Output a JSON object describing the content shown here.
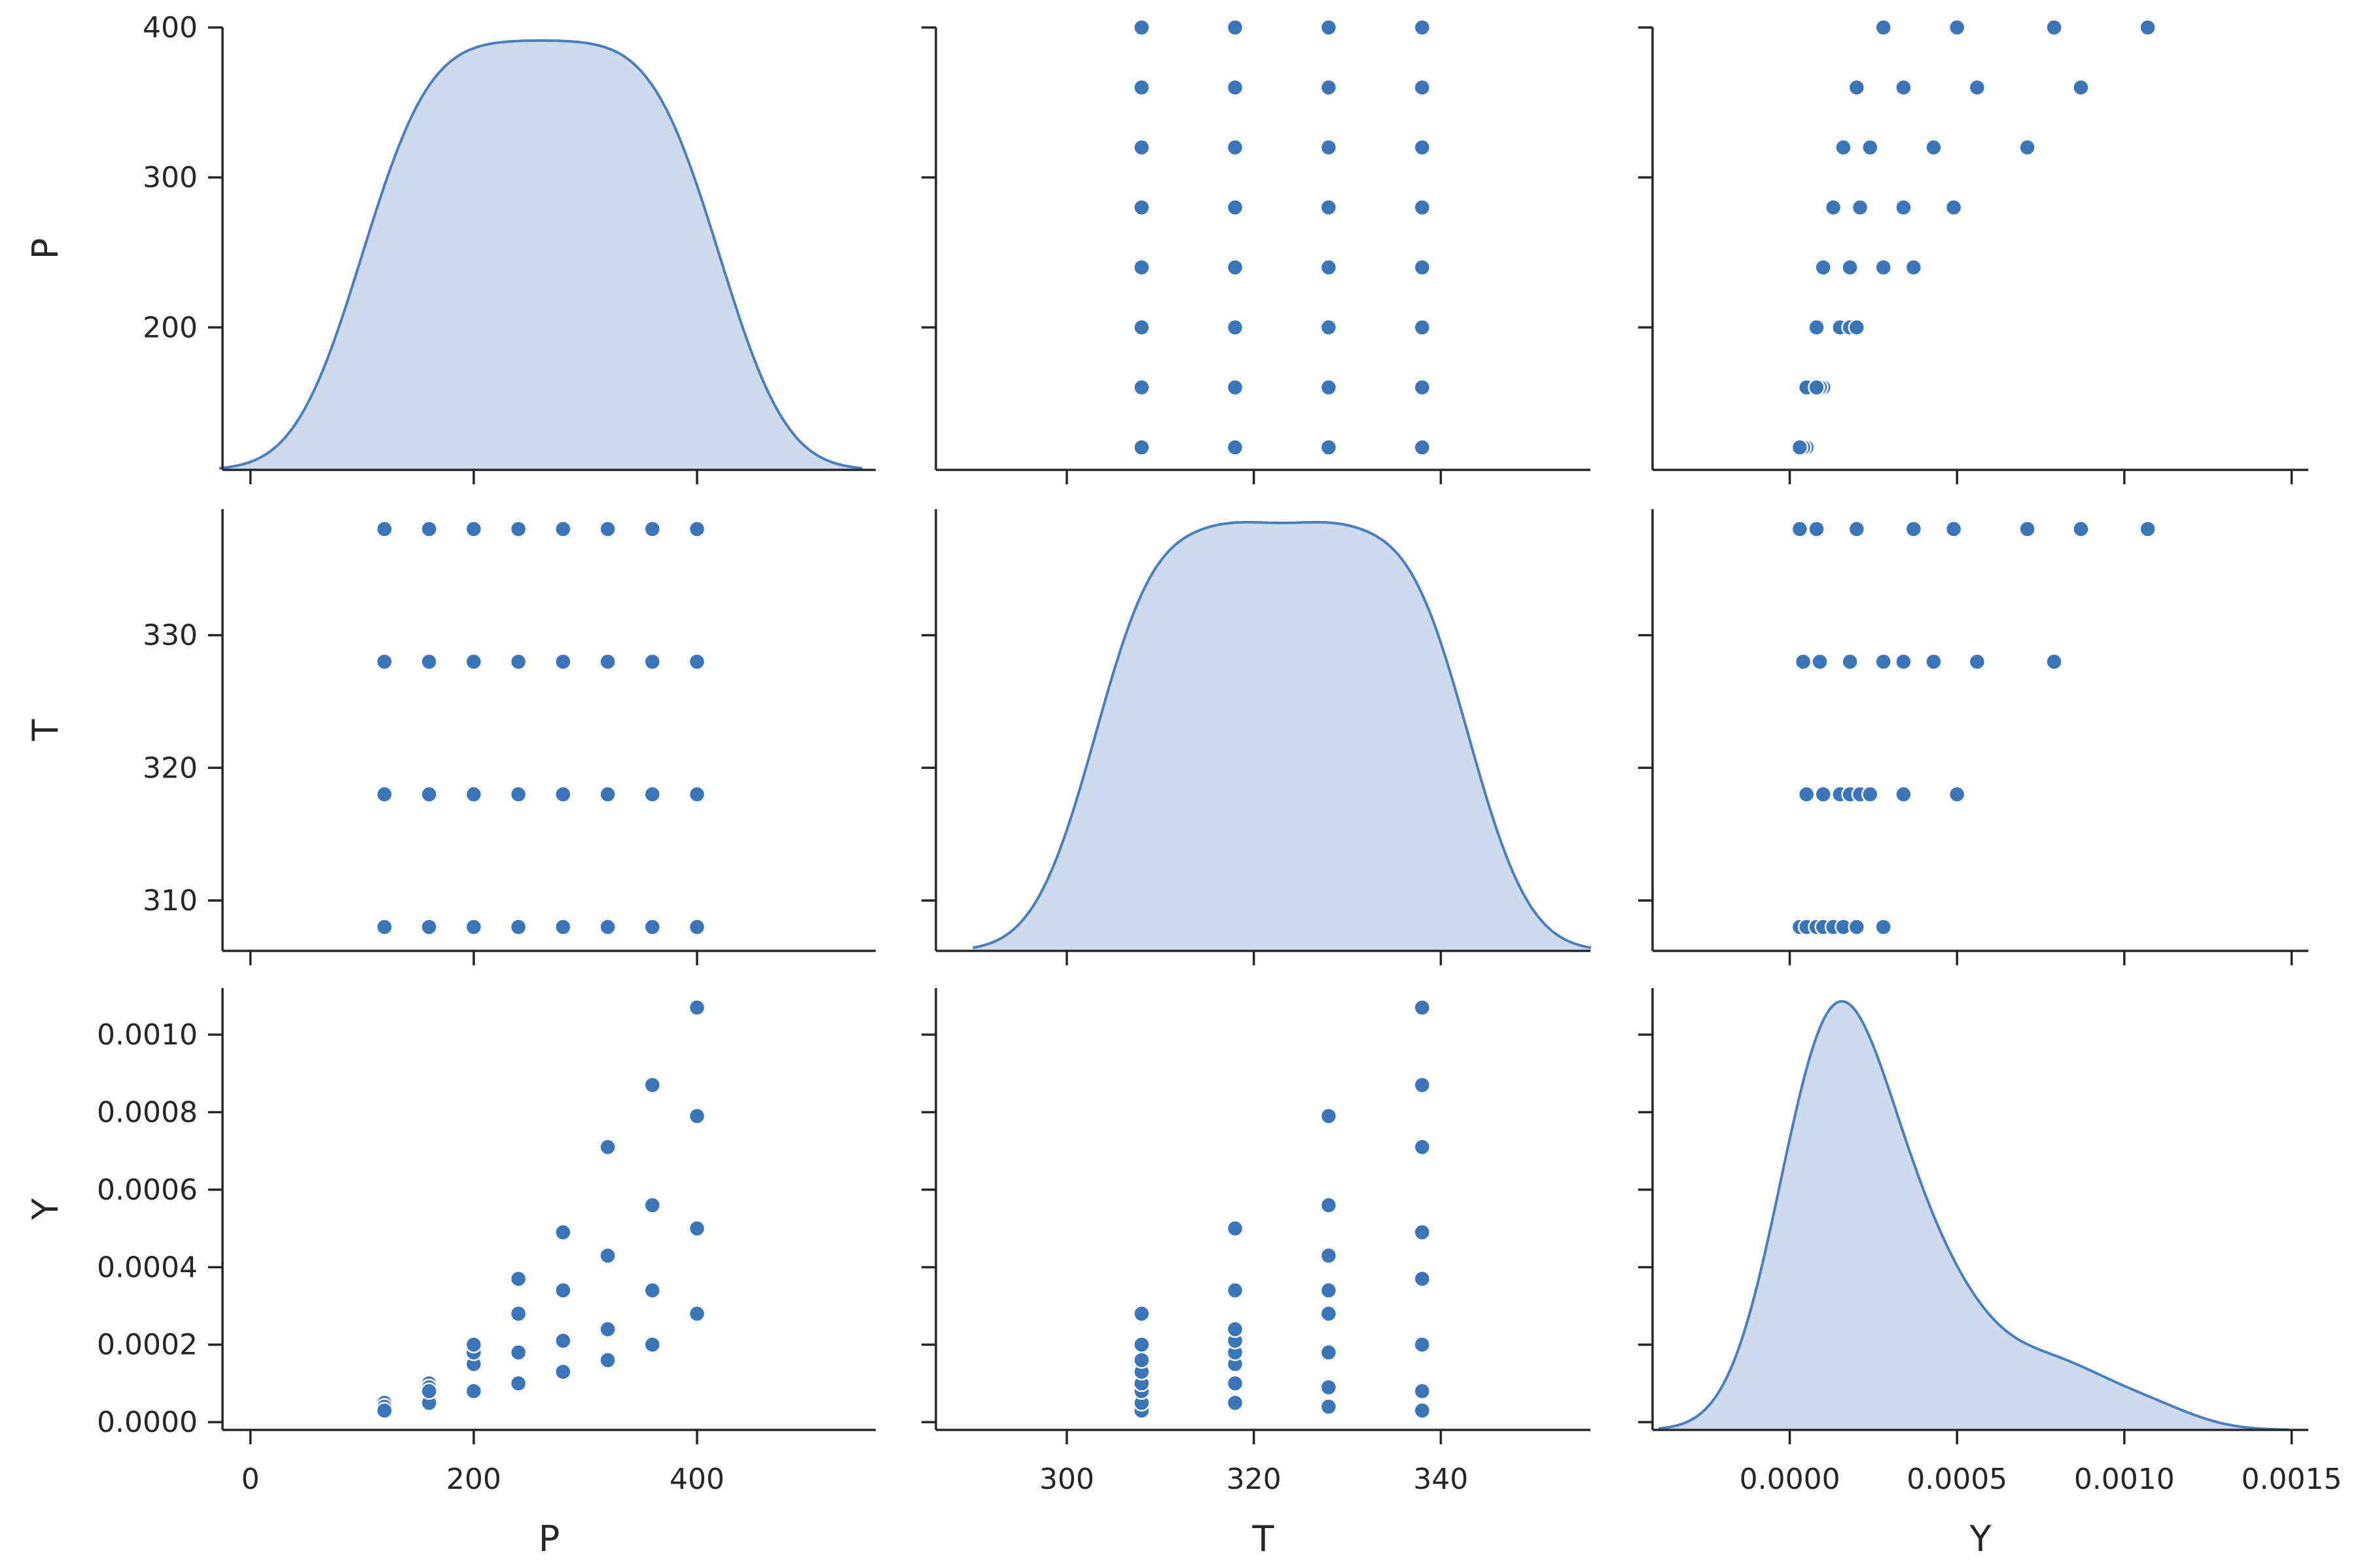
{
  "chart_data": {
    "type": "pairplot",
    "variables": [
      "P",
      "T",
      "Y"
    ],
    "colors": {
      "point": "#3a75b9",
      "kde_line": "#4a7fbf",
      "kde_fill": "#cfdbec",
      "axis": "#262626"
    },
    "grid": false,
    "axes": {
      "P": {
        "label": "P",
        "range": [
          -25,
          560
        ],
        "ticks": [
          0,
          200,
          400
        ],
        "tick_labels": [
          "0",
          "200",
          "400"
        ],
        "diag_y_range": [
          105,
          400
        ],
        "diag_y_ticks": [
          200,
          300,
          400
        ],
        "diag_y_tick_labels": [
          "200",
          "300",
          "400"
        ]
      },
      "T": {
        "label": "T",
        "range": [
          286,
          356
        ],
        "ticks": [
          300,
          320,
          340
        ],
        "tick_labels": [
          "300",
          "320",
          "340"
        ],
        "y_range": [
          306.2,
          339.5
        ],
        "y_ticks": [
          310,
          320,
          330
        ],
        "y_tick_labels": [
          "310",
          "320",
          "330"
        ]
      },
      "Y": {
        "label": "Y",
        "range": [
          -0.00041,
          0.00155
        ],
        "ticks": [
          0.0,
          0.0005,
          0.001,
          0.0015
        ],
        "tick_labels": [
          "0.0000",
          "0.0005",
          "0.0010",
          "0.0015"
        ],
        "y_range": [
          -2e-05,
          0.00112
        ],
        "y_ticks": [
          0.0,
          0.0002,
          0.0004,
          0.0006,
          0.0008,
          0.001
        ],
        "y_tick_labels": [
          "0.0000",
          "0.0002",
          "0.0004",
          "0.0006",
          "0.0008",
          "0.0010"
        ]
      }
    },
    "points": [
      {
        "P": 120,
        "T": 308,
        "Y": 3e-05
      },
      {
        "P": 160,
        "T": 308,
        "Y": 5e-05
      },
      {
        "P": 200,
        "T": 308,
        "Y": 8e-05
      },
      {
        "P": 240,
        "T": 308,
        "Y": 0.0001
      },
      {
        "P": 280,
        "T": 308,
        "Y": 0.00013
      },
      {
        "P": 320,
        "T": 308,
        "Y": 0.00016
      },
      {
        "P": 360,
        "T": 308,
        "Y": 0.0002
      },
      {
        "P": 400,
        "T": 308,
        "Y": 0.00028
      },
      {
        "P": 120,
        "T": 318,
        "Y": 5e-05
      },
      {
        "P": 160,
        "T": 318,
        "Y": 0.0001
      },
      {
        "P": 200,
        "T": 318,
        "Y": 0.00015
      },
      {
        "P": 240,
        "T": 318,
        "Y": 0.00018
      },
      {
        "P": 280,
        "T": 318,
        "Y": 0.00021
      },
      {
        "P": 320,
        "T": 318,
        "Y": 0.00024
      },
      {
        "P": 360,
        "T": 318,
        "Y": 0.00034
      },
      {
        "P": 400,
        "T": 318,
        "Y": 0.0005
      },
      {
        "P": 120,
        "T": 328,
        "Y": 4e-05
      },
      {
        "P": 160,
        "T": 328,
        "Y": 9e-05
      },
      {
        "P": 200,
        "T": 328,
        "Y": 0.00018
      },
      {
        "P": 240,
        "T": 328,
        "Y": 0.00028
      },
      {
        "P": 280,
        "T": 328,
        "Y": 0.00034
      },
      {
        "P": 320,
        "T": 328,
        "Y": 0.00043
      },
      {
        "P": 360,
        "T": 328,
        "Y": 0.00056
      },
      {
        "P": 400,
        "T": 328,
        "Y": 0.00079
      },
      {
        "P": 120,
        "T": 338,
        "Y": 3e-05
      },
      {
        "P": 160,
        "T": 338,
        "Y": 8e-05
      },
      {
        "P": 200,
        "T": 338,
        "Y": 0.0002
      },
      {
        "P": 240,
        "T": 338,
        "Y": 0.00037
      },
      {
        "P": 280,
        "T": 338,
        "Y": 0.00049
      },
      {
        "P": 320,
        "T": 338,
        "Y": 0.00071
      },
      {
        "P": 360,
        "T": 338,
        "Y": 0.00087
      },
      {
        "P": 400,
        "T": 338,
        "Y": 0.00107
      }
    ]
  }
}
